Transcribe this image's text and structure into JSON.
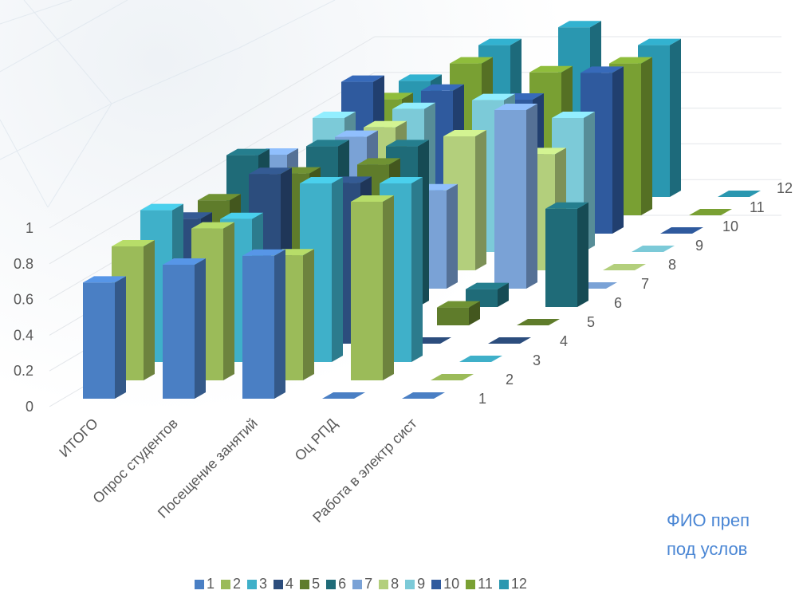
{
  "caption": {
    "line1": "ФИО преп",
    "line2": "под услов"
  },
  "chart_data": {
    "type": "bar",
    "subtype": "3d-column",
    "categories": [
      "ИТОГО",
      "Опрос студентов",
      "Посещение занятий",
      "Оц РПД",
      "Работа в электр сист"
    ],
    "y_ticks": [
      "0",
      "0.2",
      "0.4",
      "0.6",
      "0.8",
      "1"
    ],
    "ylim": [
      0,
      1
    ],
    "grid": true,
    "legend_position": "bottom",
    "colors": [
      "#4a7fc4",
      "#9bbb59",
      "#3fb0c9",
      "#2c4d7d",
      "#5f7c2b",
      "#1f6b78",
      "#7aa2d6",
      "#b3cf7c",
      "#7ccad8",
      "#2f5a9e",
      "#79a033",
      "#2a97b0"
    ],
    "series": [
      {
        "name": "1",
        "values": [
          0.65,
          0.75,
          0.8,
          0.0,
          0.0
        ]
      },
      {
        "name": "2",
        "values": [
          0.75,
          0.85,
          0.7,
          1.0,
          0.0
        ]
      },
      {
        "name": "3",
        "values": [
          0.85,
          0.8,
          1.0,
          1.0,
          0.0
        ]
      },
      {
        "name": "4",
        "values": [
          0.7,
          0.95,
          0.9,
          0.0,
          0.0
        ]
      },
      {
        "name": "5",
        "values": [
          0.7,
          0.85,
          0.9,
          0.1,
          0.0
        ]
      },
      {
        "name": "6",
        "values": [
          0.85,
          0.9,
          0.9,
          0.1,
          0.55
        ]
      },
      {
        "name": "7",
        "values": [
          0.75,
          0.85,
          0.55,
          1.0,
          0.0
        ]
      },
      {
        "name": "8",
        "values": [
          0.5,
          0.8,
          0.75,
          0.65,
          0.0
        ]
      },
      {
        "name": "9",
        "values": [
          0.75,
          0.8,
          0.85,
          0.75,
          0.0
        ]
      },
      {
        "name": "10",
        "values": [
          0.85,
          0.8,
          0.75,
          0.9,
          0.0
        ]
      },
      {
        "name": "11",
        "values": [
          0.65,
          0.85,
          0.8,
          0.85,
          0.0
        ]
      },
      {
        "name": "12",
        "values": [
          0.65,
          0.85,
          0.95,
          0.85,
          0.0
        ]
      }
    ]
  }
}
